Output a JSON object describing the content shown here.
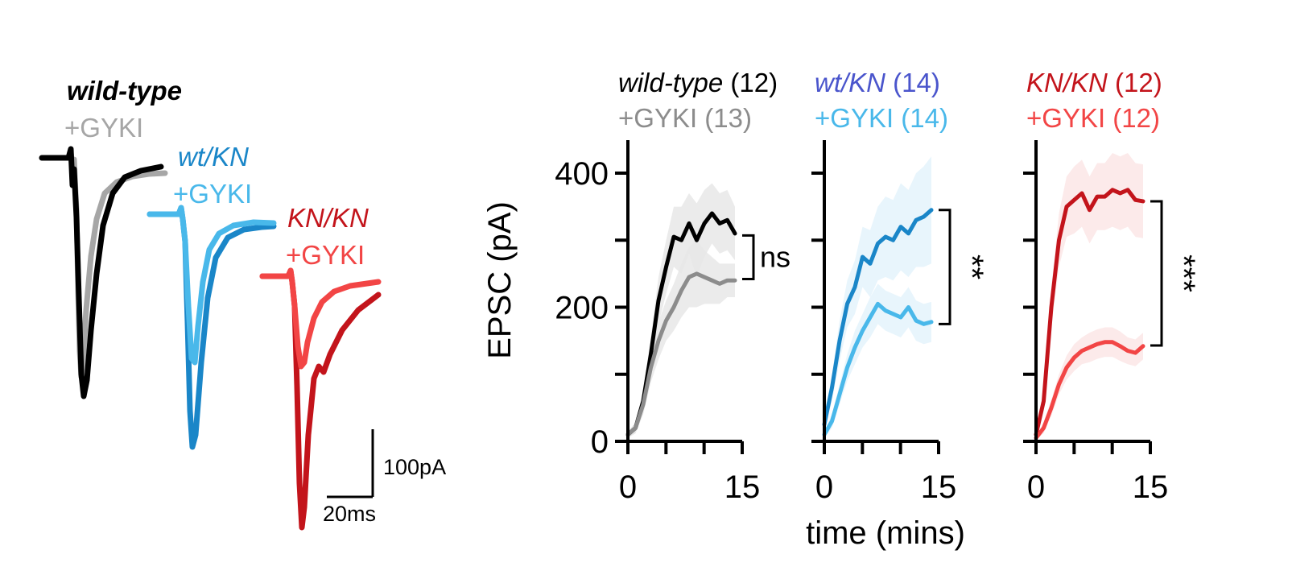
{
  "traces_panel": {
    "groups": [
      {
        "genotype_label": "wild-type",
        "drug_label": "+GYKI",
        "control_color": "#000000",
        "drug_color": "#a6a6a6",
        "control_peak_pA": -195,
        "drug_peak_pA": -180
      },
      {
        "genotype_label": "wt/KN",
        "drug_label": "+GYKI",
        "control_color": "#1a86c8",
        "drug_color": "#49b8ea",
        "control_peak_pA": -175,
        "drug_peak_pA": -120
      },
      {
        "genotype_label": "KN/KN",
        "drug_label": "+GYKI",
        "control_color": "#c3141b",
        "drug_color": "#f24545",
        "control_peak_pA": -200,
        "drug_peak_pA": -70
      }
    ],
    "scale_bar": {
      "current_label": "100pA",
      "time_label": "20ms"
    }
  },
  "chart_data": {
    "type": "line",
    "ylabel": "EPSC (pA)",
    "xlabel": "time (mins)",
    "ylim": [
      0,
      400
    ],
    "yticks": [
      0,
      200,
      400
    ],
    "xlim": [
      0,
      15
    ],
    "xticks": [
      0,
      15
    ],
    "panels": [
      {
        "legend": [
          {
            "text": "wild-type",
            "count": "(12)",
            "text_color": "#000000",
            "count_color": "#000000",
            "italic": true
          },
          {
            "text": "+GYKI",
            "count": "(13)",
            "text_color": "#8c8c8c",
            "count_color": "#8c8c8c",
            "italic": false
          }
        ],
        "significance": "ns",
        "bracket_y": [
          307,
          242
        ],
        "series": [
          {
            "role": "control",
            "color": "#000000",
            "band_color": "#e8e8e8",
            "x": [
              0,
              1,
              2,
              3,
              4,
              5,
              6,
              7,
              8,
              9,
              10,
              11,
              12,
              13,
              14
            ],
            "y": [
              10,
              20,
              60,
              130,
              210,
              260,
              305,
              300,
              325,
              300,
              325,
              340,
              325,
              330,
              310
            ],
            "sem": [
              5,
              8,
              15,
              25,
              35,
              40,
              45,
              50,
              45,
              55,
              50,
              45,
              45,
              45,
              40
            ]
          },
          {
            "role": "GYKI",
            "color": "#8c8c8c",
            "band_color": "#e8e8e8",
            "x": [
              0,
              1,
              2,
              3,
              4,
              5,
              6,
              7,
              8,
              9,
              10,
              11,
              12,
              13,
              14
            ],
            "y": [
              10,
              20,
              55,
              110,
              150,
              180,
              200,
              225,
              245,
              250,
              245,
              240,
              235,
              240,
              240
            ],
            "sem": [
              5,
              8,
              15,
              22,
              28,
              30,
              35,
              40,
              45,
              50,
              40,
              35,
              30,
              25,
              25
            ]
          }
        ]
      },
      {
        "legend": [
          {
            "text": "wt/KN",
            "count": "(14)",
            "text_color": "#4a55cc",
            "count_color": "#4a55cc",
            "italic": true
          },
          {
            "text": "+GYKI",
            "count": "(14)",
            "text_color": "#49b8ea",
            "count_color": "#49b8ea",
            "italic": false
          }
        ],
        "significance": "**",
        "bracket_y": [
          345,
          175
        ],
        "series": [
          {
            "role": "control",
            "color": "#1a86c8",
            "band_color": "#e4f3fb",
            "x": [
              0,
              1,
              2,
              3,
              4,
              5,
              6,
              7,
              8,
              9,
              10,
              11,
              12,
              13,
              14
            ],
            "y": [
              25,
              80,
              150,
              205,
              230,
              275,
              265,
              295,
              305,
              300,
              320,
              310,
              330,
              335,
              345
            ],
            "sem": [
              10,
              20,
              30,
              35,
              40,
              45,
              50,
              55,
              60,
              60,
              65,
              65,
              70,
              75,
              80
            ]
          },
          {
            "role": "GYKI",
            "color": "#49b8ea",
            "band_color": "#e4f3fb",
            "x": [
              0,
              1,
              2,
              3,
              4,
              5,
              6,
              7,
              8,
              9,
              10,
              11,
              12,
              13,
              14
            ],
            "y": [
              10,
              30,
              70,
              110,
              140,
              165,
              185,
              205,
              195,
              190,
              185,
              200,
              180,
              175,
              178
            ],
            "sem": [
              5,
              10,
              15,
              20,
              25,
              25,
              30,
              30,
              30,
              30,
              30,
              30,
              30,
              30,
              30
            ]
          }
        ]
      },
      {
        "legend": [
          {
            "text": "KN/KN",
            "count": "(12)",
            "text_color": "#c3141b",
            "count_color": "#c3141b",
            "italic": true
          },
          {
            "text": "+GYKI",
            "count": "(12)",
            "text_color": "#f24545",
            "count_color": "#f24545",
            "italic": false
          }
        ],
        "significance": "***",
        "bracket_y": [
          358,
          143
        ],
        "series": [
          {
            "role": "control",
            "color": "#c3141b",
            "band_color": "#fbe6e6",
            "x": [
              0,
              1,
              2,
              3,
              4,
              5,
              6,
              7,
              8,
              9,
              10,
              11,
              12,
              13,
              14
            ],
            "y": [
              10,
              60,
              200,
              300,
              350,
              360,
              370,
              345,
              365,
              365,
              375,
              370,
              375,
              360,
              358
            ],
            "sem": [
              5,
              15,
              30,
              40,
              45,
              50,
              50,
              50,
              50,
              50,
              55,
              55,
              55,
              55,
              55
            ]
          },
          {
            "role": "GYKI",
            "color": "#f24545",
            "band_color": "#fbe6e6",
            "x": [
              0,
              1,
              2,
              3,
              4,
              5,
              6,
              7,
              8,
              9,
              10,
              11,
              12,
              13,
              14
            ],
            "y": [
              5,
              20,
              50,
              85,
              110,
              125,
              135,
              140,
              145,
              148,
              148,
              142,
              135,
              132,
              142
            ],
            "sem": [
              3,
              8,
              12,
              15,
              18,
              20,
              20,
              22,
              22,
              22,
              22,
              22,
              20,
              20,
              20
            ]
          }
        ]
      }
    ]
  }
}
